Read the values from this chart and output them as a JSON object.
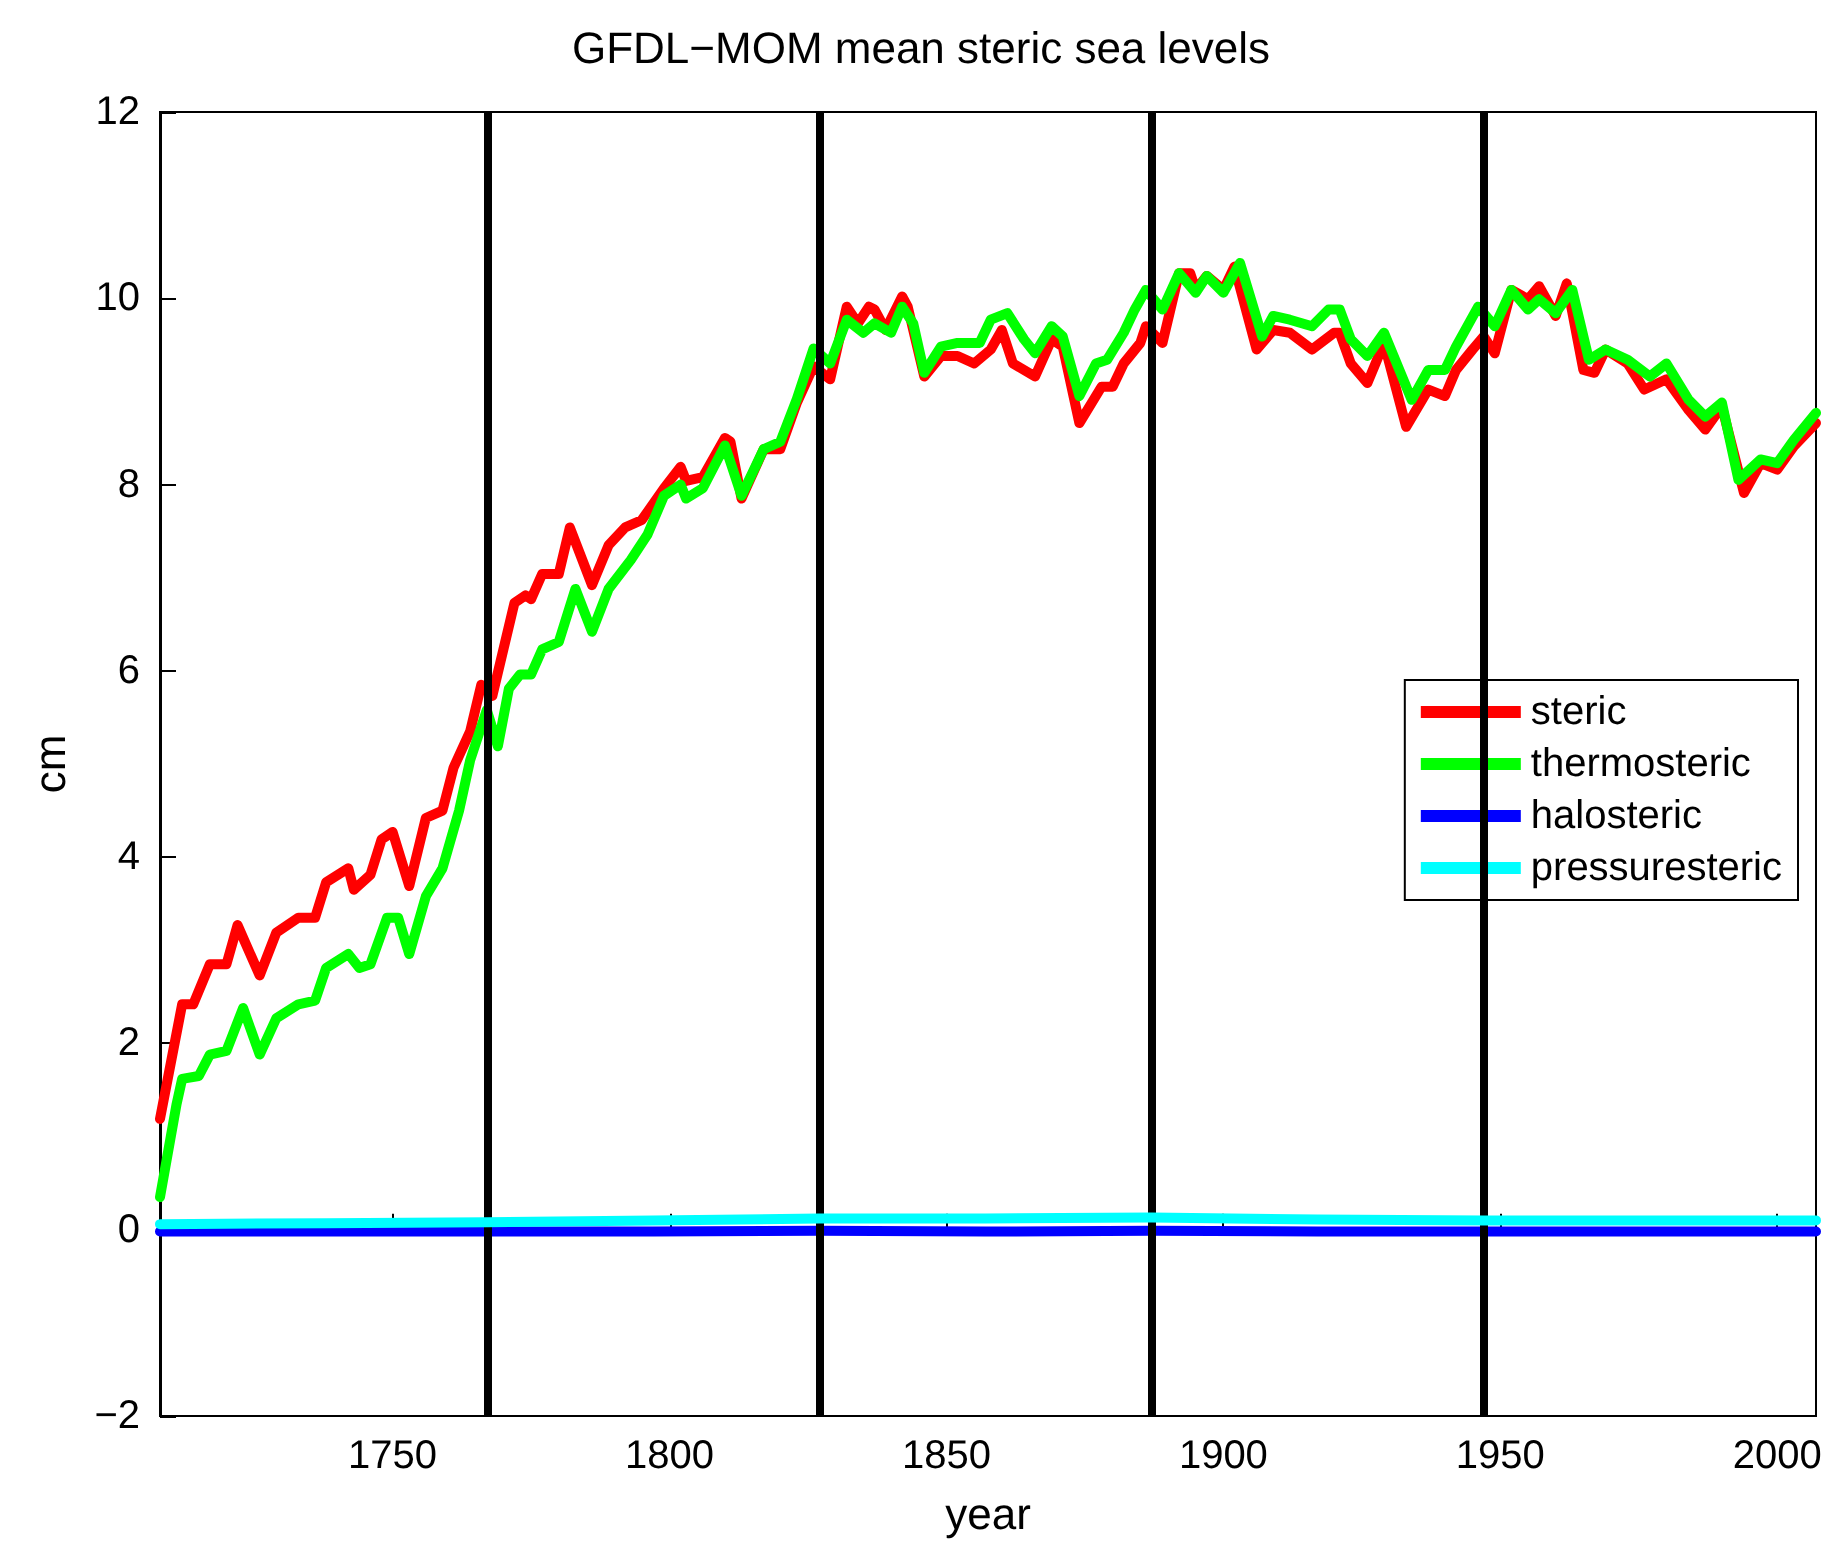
{
  "chart_data": {
    "type": "line",
    "title": "GFDL−MOM mean steric sea levels",
    "xlabel": "year",
    "ylabel": "cm",
    "xlim": [
      1708,
      2007
    ],
    "xticks": [
      1750,
      1800,
      1850,
      1900,
      1950,
      2000
    ],
    "ylim": [
      -2,
      12
    ],
    "yticks": [
      -2,
      0,
      2,
      4,
      6,
      8,
      10,
      12
    ],
    "grid": false,
    "legend": "right",
    "marker": "none",
    "line_style": "solid",
    "ref_lines": [
      {
        "axis": "x",
        "value": 1767,
        "color": "#000000"
      },
      {
        "axis": "x",
        "value": 1827,
        "color": "#000000"
      },
      {
        "axis": "x",
        "value": 1887,
        "color": "#000000"
      },
      {
        "axis": "x",
        "value": 1947,
        "color": "#000000"
      }
    ],
    "series": [
      {
        "name": "steric",
        "color": "#ff0000",
        "x": [
          1708,
          1712,
          1714,
          1717,
          1720,
          1722,
          1726,
          1729,
          1733,
          1736,
          1738,
          1742,
          1743,
          1746,
          1748,
          1750,
          1753,
          1756,
          1759,
          1761,
          1764,
          1766,
          1768,
          1772,
          1774,
          1775,
          1777,
          1780,
          1782,
          1786,
          1789,
          1792,
          1795,
          1799,
          1802,
          1803,
          1806,
          1810,
          1811,
          1813,
          1817,
          1820,
          1823,
          1826,
          1829,
          1832,
          1834,
          1836,
          1837,
          1839,
          1842,
          1843,
          1846,
          1849,
          1852,
          1855,
          1858,
          1860,
          1862,
          1866,
          1869,
          1871,
          1874,
          1878,
          1880,
          1882,
          1885,
          1886,
          1889,
          1892,
          1894,
          1895,
          1897,
          1900,
          1902,
          1906,
          1909,
          1912,
          1916,
          1920,
          1921,
          1923,
          1926,
          1929,
          1933,
          1937,
          1940,
          1942,
          1945,
          1947,
          1949,
          1952,
          1955,
          1957,
          1960,
          1962,
          1965,
          1967,
          1969,
          1973,
          1976,
          1980,
          1984,
          1987,
          1990,
          1994,
          1997,
          2000,
          2003,
          2007
        ],
        "values": [
          1.19,
          2.42,
          2.42,
          2.85,
          2.85,
          3.27,
          2.73,
          3.19,
          3.35,
          3.35,
          3.73,
          3.88,
          3.65,
          3.81,
          4.19,
          4.27,
          3.69,
          4.42,
          4.5,
          4.96,
          5.35,
          5.85,
          5.73,
          6.73,
          6.81,
          6.77,
          7.04,
          7.04,
          7.54,
          6.92,
          7.35,
          7.54,
          7.62,
          7.96,
          8.19,
          8.04,
          8.08,
          8.5,
          8.46,
          7.85,
          8.38,
          8.38,
          8.88,
          9.27,
          9.13,
          9.91,
          9.73,
          9.91,
          9.88,
          9.66,
          10.02,
          9.91,
          9.16,
          9.38,
          9.38,
          9.3,
          9.45,
          9.66,
          9.3,
          9.16,
          9.56,
          9.48,
          8.66,
          9.05,
          9.05,
          9.3,
          9.52,
          9.7,
          9.52,
          10.27,
          10.27,
          10.09,
          10.24,
          10.09,
          10.34,
          9.45,
          9.66,
          9.63,
          9.45,
          9.63,
          9.63,
          9.3,
          9.09,
          9.52,
          8.62,
          9.02,
          8.95,
          9.23,
          9.45,
          9.59,
          9.41,
          10.09,
          9.99,
          10.13,
          9.81,
          10.16,
          9.23,
          9.2,
          9.45,
          9.3,
          9.02,
          9.13,
          8.8,
          8.59,
          8.84,
          7.91,
          8.23,
          8.16,
          8.41,
          8.66
        ]
      },
      {
        "name": "thermosteric",
        "color": "#00ff00",
        "x": [
          1708,
          1711,
          1712,
          1715,
          1717,
          1720,
          1723,
          1726,
          1729,
          1733,
          1736,
          1738,
          1742,
          1744,
          1746,
          1749,
          1751,
          1753,
          1756,
          1759,
          1762,
          1764,
          1767,
          1769,
          1771,
          1773,
          1775,
          1777,
          1780,
          1783,
          1786,
          1789,
          1793,
          1796,
          1799,
          1802,
          1803,
          1806,
          1810,
          1813,
          1817,
          1820,
          1823,
          1826,
          1829,
          1832,
          1835,
          1837,
          1840,
          1842,
          1844,
          1846,
          1849,
          1852,
          1856,
          1858,
          1861,
          1864,
          1866,
          1869,
          1871,
          1874,
          1877,
          1879,
          1882,
          1884,
          1886,
          1889,
          1892,
          1895,
          1897,
          1900,
          1903,
          1907,
          1909,
          1912,
          1916,
          1919,
          1921,
          1923,
          1926,
          1929,
          1934,
          1937,
          1940,
          1942,
          1946,
          1949,
          1952,
          1955,
          1957,
          1960,
          1963,
          1966,
          1969,
          1973,
          1977,
          1980,
          1984,
          1987,
          1990,
          1993,
          1997,
          2000,
          2003,
          2007
        ],
        "values": [
          0.35,
          1.35,
          1.62,
          1.65,
          1.88,
          1.92,
          2.38,
          1.88,
          2.27,
          2.42,
          2.46,
          2.81,
          2.96,
          2.81,
          2.85,
          3.35,
          3.35,
          2.96,
          3.58,
          3.88,
          4.5,
          5.04,
          5.58,
          5.19,
          5.81,
          5.96,
          5.96,
          6.23,
          6.31,
          6.88,
          6.42,
          6.88,
          7.19,
          7.46,
          7.88,
          8.0,
          7.85,
          7.96,
          8.42,
          7.88,
          8.38,
          8.46,
          8.92,
          9.46,
          9.3,
          9.77,
          9.63,
          9.73,
          9.63,
          9.91,
          9.73,
          9.2,
          9.48,
          9.52,
          9.52,
          9.77,
          9.84,
          9.56,
          9.41,
          9.7,
          9.59,
          8.95,
          9.3,
          9.34,
          9.63,
          9.88,
          10.09,
          9.88,
          10.27,
          10.06,
          10.24,
          10.06,
          10.38,
          9.59,
          9.81,
          9.77,
          9.7,
          9.88,
          9.88,
          9.56,
          9.38,
          9.63,
          8.91,
          9.23,
          9.23,
          9.48,
          9.91,
          9.7,
          10.09,
          9.88,
          9.99,
          9.84,
          10.09,
          9.34,
          9.45,
          9.34,
          9.16,
          9.3,
          8.91,
          8.73,
          8.88,
          8.05,
          8.27,
          8.23,
          8.48,
          8.77
        ]
      },
      {
        "name": "halosteric",
        "color": "#0000ff",
        "x": [
          1708,
          1738,
          1767,
          1797,
          1827,
          1857,
          1887,
          1917,
          1947,
          1977,
          2007
        ],
        "values": [
          -0.02,
          -0.02,
          -0.02,
          -0.02,
          -0.01,
          -0.02,
          -0.01,
          -0.02,
          -0.02,
          -0.02,
          -0.02
        ]
      },
      {
        "name": "pressuresteric",
        "color": "#00ffff",
        "x": [
          1708,
          1738,
          1767,
          1797,
          1827,
          1857,
          1887,
          1917,
          1947,
          1977,
          2007
        ],
        "values": [
          0.06,
          0.07,
          0.08,
          0.1,
          0.12,
          0.12,
          0.13,
          0.11,
          0.1,
          0.1,
          0.1
        ]
      }
    ]
  }
}
